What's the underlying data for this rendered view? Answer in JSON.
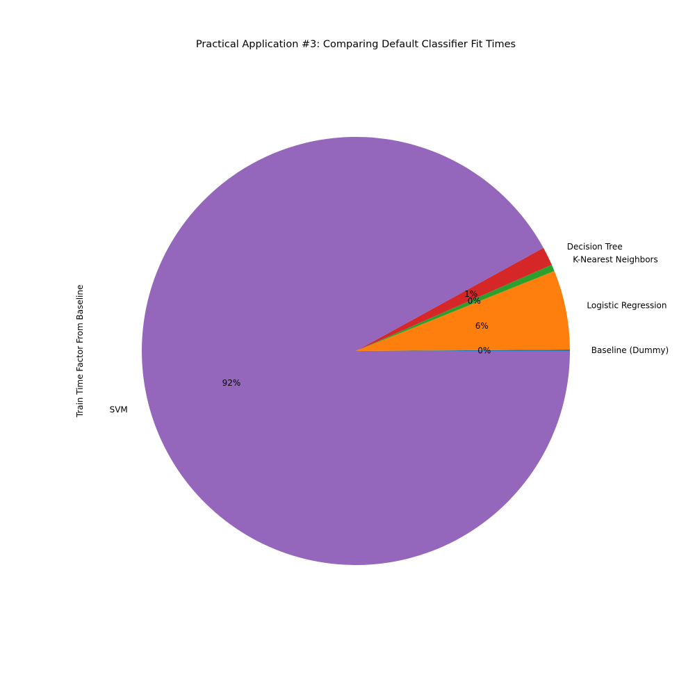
{
  "chart_data": {
    "type": "pie",
    "title": "Practical Application #3: Comparing Default Classifier Fit Times",
    "ylabel": "Train Time Factor From Baseline",
    "start_angle_deg": 0,
    "direction": "counterclockwise",
    "slices": [
      {
        "label": "Baseline (Dummy)",
        "value": 0.1,
        "pct_label": "0%",
        "color": "#1f77b4"
      },
      {
        "label": "Logistic Regression",
        "value": 6.0,
        "pct_label": "6%",
        "color": "#ff7f0e"
      },
      {
        "label": "K-Nearest Neighbors",
        "value": 0.5,
        "pct_label": "0%",
        "color": "#2ca02c"
      },
      {
        "label": "Decision Tree",
        "value": 1.4,
        "pct_label": "1%",
        "color": "#d62728"
      },
      {
        "label": "SVM",
        "value": 92.0,
        "pct_label": "92%",
        "color": "#9467bd"
      }
    ]
  }
}
